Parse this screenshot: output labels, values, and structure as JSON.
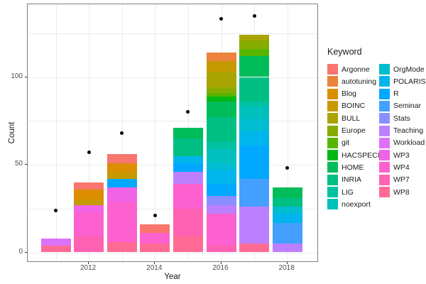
{
  "chart_data": {
    "type": "bar",
    "subtype": "stacked-bars-with-points",
    "title": "",
    "xlabel": "Year",
    "ylabel": "Count",
    "legend_title": "Keyword",
    "legend_position": "right",
    "grid": "on",
    "x_ticks": [
      2012,
      2014,
      2016,
      2018
    ],
    "y_ticks": [
      0,
      50,
      100
    ],
    "y_minor_grid": [
      25,
      75,
      125
    ],
    "ylim": [
      -6,
      142
    ],
    "keywords": [
      {
        "name": "Argonne",
        "color": "#F8766D"
      },
      {
        "name": "autotuning",
        "color": "#EC823C"
      },
      {
        "name": "Blog",
        "color": "#DB8E00"
      },
      {
        "name": "BOINC",
        "color": "#C69900"
      },
      {
        "name": "BULL",
        "color": "#AAA400"
      },
      {
        "name": "Europe",
        "color": "#87AC00"
      },
      {
        "name": "git",
        "color": "#57B500"
      },
      {
        "name": "HACSPECIS",
        "color": "#00B813"
      },
      {
        "name": "HOME",
        "color": "#00BC59"
      },
      {
        "name": "INRIA",
        "color": "#00BF83"
      },
      {
        "name": "LIG",
        "color": "#00C1A2"
      },
      {
        "name": "noexport",
        "color": "#00C0BE"
      },
      {
        "name": "OrgMode",
        "color": "#00BDD0"
      },
      {
        "name": "POLARIS",
        "color": "#00B5EB"
      },
      {
        "name": "R",
        "color": "#00A9FF"
      },
      {
        "name": "Seminar",
        "color": "#459FFF"
      },
      {
        "name": "Stats",
        "color": "#8A8FFF"
      },
      {
        "name": "Teaching",
        "color": "#BC80FF"
      },
      {
        "name": "Workload",
        "color": "#DC71FA"
      },
      {
        "name": "WP3",
        "color": "#F064E6"
      },
      {
        "name": "WP4",
        "color": "#FC61CF"
      },
      {
        "name": "WP7",
        "color": "#FF62B2"
      },
      {
        "name": "WP8",
        "color": "#FF6B94"
      }
    ],
    "bars": [
      {
        "year": 2011,
        "total": 8,
        "point": 24,
        "segments_bottom_to_top": [
          {
            "keyword": "WP8",
            "value": 4
          },
          {
            "keyword": "Workload",
            "value": 4
          }
        ]
      },
      {
        "year": 2012,
        "total": 40,
        "point": 57,
        "segments_bottom_to_top": [
          {
            "keyword": "WP7",
            "value": 9
          },
          {
            "keyword": "WP4",
            "value": 14
          },
          {
            "keyword": "WP3",
            "value": 4
          },
          {
            "keyword": "BOINC",
            "value": 3
          },
          {
            "keyword": "Blog",
            "value": 6
          },
          {
            "keyword": "Argonne",
            "value": 4
          }
        ]
      },
      {
        "year": 2013,
        "total": 56,
        "point": 68,
        "segments_bottom_to_top": [
          {
            "keyword": "WP8",
            "value": 6
          },
          {
            "keyword": "WP4",
            "value": 23
          },
          {
            "keyword": "WP3",
            "value": 8
          },
          {
            "keyword": "R",
            "value": 5
          },
          {
            "keyword": "BOINC",
            "value": 4
          },
          {
            "keyword": "Blog",
            "value": 5
          },
          {
            "keyword": "Argonne",
            "value": 5
          }
        ]
      },
      {
        "year": 2014,
        "total": 16,
        "point": 21,
        "segments_bottom_to_top": [
          {
            "keyword": "WP8",
            "value": 5
          },
          {
            "keyword": "WP4",
            "value": 6
          },
          {
            "keyword": "Argonne",
            "value": 5
          }
        ]
      },
      {
        "year": 2015,
        "total": 71,
        "point": 80,
        "segments_bottom_to_top": [
          {
            "keyword": "WP8",
            "value": 9
          },
          {
            "keyword": "WP7",
            "value": 16
          },
          {
            "keyword": "WP4",
            "value": 14
          },
          {
            "keyword": "Teaching",
            "value": 7
          },
          {
            "keyword": "R",
            "value": 5
          },
          {
            "keyword": "POLARIS",
            "value": 4
          },
          {
            "keyword": "INRIA",
            "value": 10
          },
          {
            "keyword": "HOME",
            "value": 6
          }
        ]
      },
      {
        "year": 2016,
        "total": 114,
        "point": 133,
        "segments_bottom_to_top": [
          {
            "keyword": "WP7",
            "value": 4
          },
          {
            "keyword": "WP4",
            "value": 18
          },
          {
            "keyword": "Teaching",
            "value": 5
          },
          {
            "keyword": "Stats",
            "value": 5
          },
          {
            "keyword": "R",
            "value": 7
          },
          {
            "keyword": "POLARIS",
            "value": 8
          },
          {
            "keyword": "OrgMode",
            "value": 4
          },
          {
            "keyword": "noexport",
            "value": 8
          },
          {
            "keyword": "LIG",
            "value": 4
          },
          {
            "keyword": "INRIA",
            "value": 14
          },
          {
            "keyword": "HOME",
            "value": 9
          },
          {
            "keyword": "HACSPECIS",
            "value": 3
          },
          {
            "keyword": "git",
            "value": 2
          },
          {
            "keyword": "Europe",
            "value": 3
          },
          {
            "keyword": "BULL",
            "value": 9
          },
          {
            "keyword": "BOINC",
            "value": 6
          },
          {
            "keyword": "autotuning",
            "value": 5
          }
        ]
      },
      {
        "year": 2017,
        "total": 124,
        "point": 135,
        "segments_bottom_to_top": [
          {
            "keyword": "WP8",
            "value": 5
          },
          {
            "keyword": "Teaching",
            "value": 21
          },
          {
            "keyword": "Seminar",
            "value": 16
          },
          {
            "keyword": "R",
            "value": 19
          },
          {
            "keyword": "POLARIS",
            "value": 8
          },
          {
            "keyword": "OrgMode",
            "value": 7
          },
          {
            "keyword": "noexport",
            "value": 7
          },
          {
            "keyword": "LIG",
            "value": 3
          },
          {
            "keyword": "INRIA",
            "value": 14
          },
          {
            "keyword": "HOME",
            "value": 12
          },
          {
            "keyword": "git",
            "value": 4
          },
          {
            "keyword": "Europe",
            "value": 5
          },
          {
            "keyword": "BULL",
            "value": 3
          }
        ]
      },
      {
        "year": 2018,
        "total": 37,
        "point": 48,
        "segments_bottom_to_top": [
          {
            "keyword": "Teaching",
            "value": 5
          },
          {
            "keyword": "Seminar",
            "value": 12
          },
          {
            "keyword": "POLARIS",
            "value": 5
          },
          {
            "keyword": "OrgMode",
            "value": 4
          },
          {
            "keyword": "INRIA",
            "value": 5
          },
          {
            "keyword": "HOME",
            "value": 6
          }
        ]
      }
    ],
    "colors": {
      "point_color": "#000000",
      "panel_border": "#7f7f7f",
      "gridline": "#ebebeb",
      "tick_text": "#4d4d4d"
    }
  }
}
